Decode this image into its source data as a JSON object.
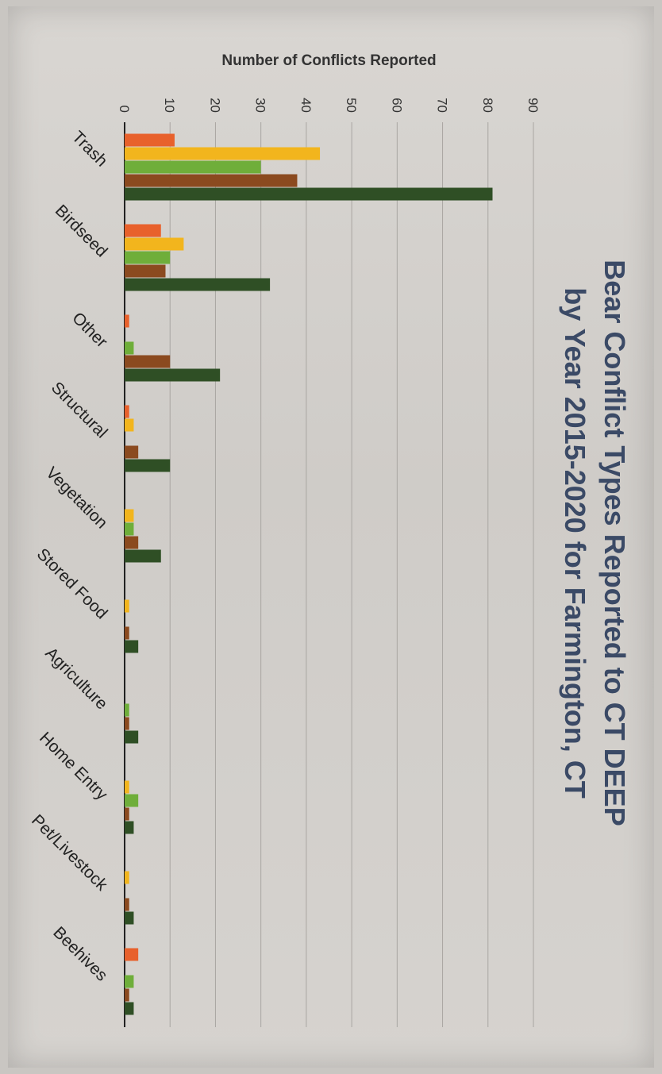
{
  "chart_data": {
    "type": "bar",
    "title_line1": "Bear Conflict Types Reported to CT DEEP",
    "title_line2": "by Year 2015-2020 for Farmington, CT",
    "ylabel": "Number of Conflicts Reported",
    "xlabel": "",
    "ylim": [
      0,
      90
    ],
    "yticks": [
      0,
      10,
      20,
      30,
      40,
      50,
      60,
      70,
      80,
      90
    ],
    "grid": true,
    "categories": [
      "Trash",
      "Birdseed",
      "Other",
      "Structural",
      "Vegetation",
      "Stored Food",
      "Agriculture",
      "Home Entry",
      "Pet/Livestock",
      "Beehives"
    ],
    "series": [
      {
        "color": "#e8612c",
        "values": [
          11,
          8,
          1,
          1,
          0,
          0,
          0,
          0,
          0,
          3
        ]
      },
      {
        "color": "#f2b51d",
        "values": [
          43,
          13,
          0,
          2,
          2,
          1,
          0,
          1,
          1,
          0
        ]
      },
      {
        "color": "#6fae3a",
        "values": [
          30,
          10,
          2,
          0,
          2,
          0,
          1,
          3,
          0,
          2
        ]
      },
      {
        "color": "#8b4a1f",
        "values": [
          38,
          9,
          10,
          3,
          3,
          1,
          1,
          1,
          1,
          1
        ]
      },
      {
        "color": "#2f4f25",
        "values": [
          81,
          32,
          21,
          10,
          8,
          3,
          3,
          2,
          2,
          2
        ]
      }
    ]
  }
}
